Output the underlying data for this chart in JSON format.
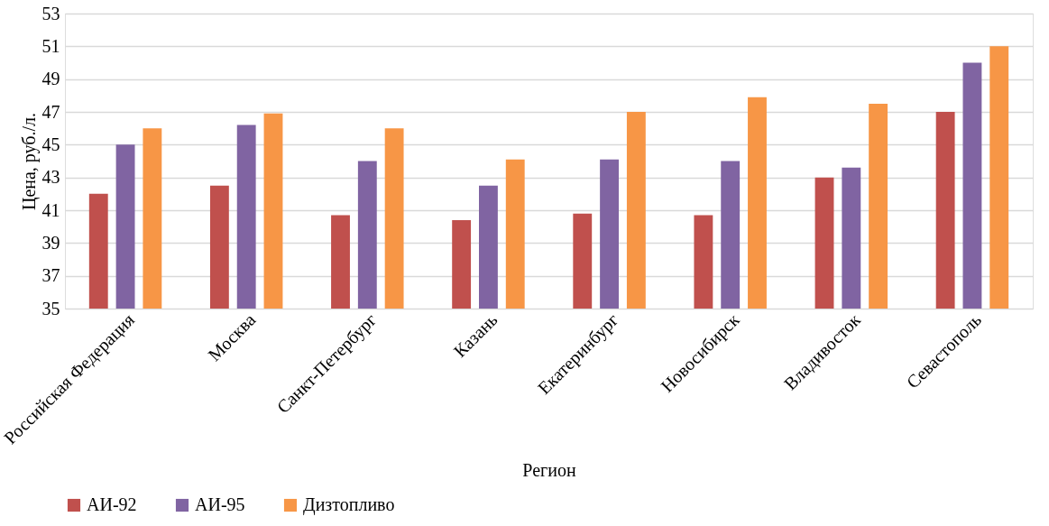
{
  "chart_data": {
    "type": "bar",
    "xlabel": "Регион",
    "ylabel": "Цена, руб./л.",
    "categories": [
      "Российская Федерация",
      "Москва",
      "Санкт-Петербург",
      "Казань",
      "Екатеринбург",
      "Новосибирск",
      "Владивосток",
      "Севастополь"
    ],
    "series": [
      {
        "name": "АИ-92",
        "color": "#c0504d",
        "values": [
          42,
          42.5,
          40.7,
          40.4,
          40.8,
          40.7,
          43,
          47
        ]
      },
      {
        "name": "АИ-95",
        "color": "#8064a2",
        "values": [
          45,
          46.2,
          44,
          42.5,
          44.1,
          44,
          43.6,
          50
        ]
      },
      {
        "name": "Дизтопливо",
        "color": "#f79646",
        "values": [
          46,
          46.9,
          46,
          44.1,
          47,
          47.9,
          47.5,
          51
        ]
      }
    ],
    "ylim": [
      35,
      53
    ],
    "yticks": [
      35,
      37,
      39,
      41,
      43,
      45,
      47,
      49,
      51,
      53
    ],
    "grid": "y",
    "legend": "bottom"
  }
}
